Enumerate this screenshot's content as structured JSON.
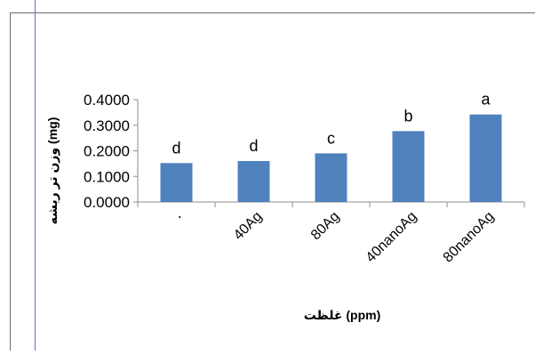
{
  "chart_data": {
    "type": "bar",
    "categories": [
      "٠",
      "40Ag",
      "80Ag",
      "40nanoAg",
      "80nanoAg"
    ],
    "values": [
      0.152,
      0.16,
      0.19,
      0.277,
      0.342
    ],
    "data_labels": [
      "d",
      "d",
      "c",
      "b",
      "a"
    ],
    "title": "",
    "xlabel": "غلظت (ppm)",
    "ylabel": "وزن تر ریشه (mg)",
    "ylim": [
      0,
      0.4
    ],
    "yticks": [
      "0.0000",
      "0.1000",
      "0.2000",
      "0.3000",
      "0.4000"
    ],
    "grid": false,
    "legend": "none",
    "bar_color": "#4f81bd"
  }
}
